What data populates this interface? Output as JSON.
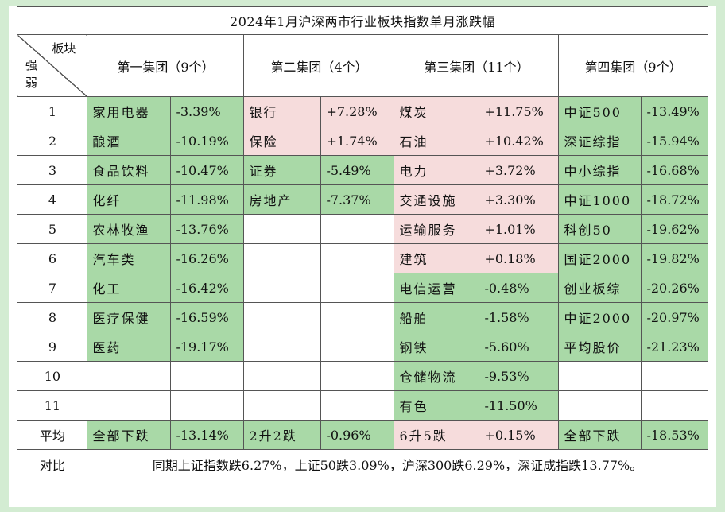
{
  "title": "2024年1月沪深两市行业板块指数单月涨跌幅",
  "corner": {
    "top": "板块",
    "bottom_1": "强",
    "bottom_2": "弱"
  },
  "groups": [
    {
      "header": "第一集团（9个）"
    },
    {
      "header": "第二集团（4个）"
    },
    {
      "header": "第三集团（11个）"
    },
    {
      "header": "第四集团（9个）"
    }
  ],
  "rows": [
    {
      "rank": "1",
      "cells": [
        {
          "name": "家用电器",
          "value": "-3.39%",
          "trend": "down"
        },
        {
          "name": "银行",
          "value": "+7.28%",
          "trend": "up"
        },
        {
          "name": "煤炭",
          "value": "+11.75%",
          "trend": "up"
        },
        {
          "name": "中证500",
          "value": "-13.49%",
          "trend": "down"
        }
      ]
    },
    {
      "rank": "2",
      "cells": [
        {
          "name": "酿酒",
          "value": "-10.19%",
          "trend": "down"
        },
        {
          "name": "保险",
          "value": "+1.74%",
          "trend": "up"
        },
        {
          "name": "石油",
          "value": "+10.42%",
          "trend": "up"
        },
        {
          "name": "深证综指",
          "value": "-15.94%",
          "trend": "down"
        }
      ]
    },
    {
      "rank": "3",
      "cells": [
        {
          "name": "食品饮料",
          "value": "-10.47%",
          "trend": "down"
        },
        {
          "name": "证券",
          "value": "-5.49%",
          "trend": "down"
        },
        {
          "name": "电力",
          "value": "+3.72%",
          "trend": "up"
        },
        {
          "name": "中小综指",
          "value": "-16.68%",
          "trend": "down"
        }
      ]
    },
    {
      "rank": "4",
      "cells": [
        {
          "name": "化纤",
          "value": "-11.98%",
          "trend": "down"
        },
        {
          "name": "房地产",
          "value": "-7.37%",
          "trend": "down"
        },
        {
          "name": "交通设施",
          "value": "+3.30%",
          "trend": "up"
        },
        {
          "name": "中证1000",
          "value": "-18.72%",
          "trend": "down"
        }
      ]
    },
    {
      "rank": "5",
      "cells": [
        {
          "name": "农林牧渔",
          "value": "-13.76%",
          "trend": "down"
        },
        {
          "name": "",
          "value": "",
          "trend": "blank"
        },
        {
          "name": "运输服务",
          "value": "+1.01%",
          "trend": "up"
        },
        {
          "name": "科创50",
          "value": "-19.62%",
          "trend": "down"
        }
      ]
    },
    {
      "rank": "6",
      "cells": [
        {
          "name": "汽车类",
          "value": "-16.26%",
          "trend": "down"
        },
        {
          "name": "",
          "value": "",
          "trend": "blank"
        },
        {
          "name": "建筑",
          "value": "+0.18%",
          "trend": "up"
        },
        {
          "name": "国证2000",
          "value": "-19.82%",
          "trend": "down"
        }
      ]
    },
    {
      "rank": "7",
      "cells": [
        {
          "name": "化工",
          "value": "-16.42%",
          "trend": "down"
        },
        {
          "name": "",
          "value": "",
          "trend": "blank"
        },
        {
          "name": "电信运营",
          "value": "-0.48%",
          "trend": "down"
        },
        {
          "name": "创业板综",
          "value": "-20.26%",
          "trend": "down"
        }
      ]
    },
    {
      "rank": "8",
      "cells": [
        {
          "name": "医疗保健",
          "value": "-16.59%",
          "trend": "down"
        },
        {
          "name": "",
          "value": "",
          "trend": "blank"
        },
        {
          "name": "船舶",
          "value": "-1.58%",
          "trend": "down"
        },
        {
          "name": "中证2000",
          "value": "-20.97%",
          "trend": "down"
        }
      ]
    },
    {
      "rank": "9",
      "cells": [
        {
          "name": "医药",
          "value": "-19.17%",
          "trend": "down"
        },
        {
          "name": "",
          "value": "",
          "trend": "blank"
        },
        {
          "name": "钢铁",
          "value": "-5.60%",
          "trend": "down"
        },
        {
          "name": "平均股价",
          "value": "-21.23%",
          "trend": "down"
        }
      ]
    },
    {
      "rank": "10",
      "cells": [
        {
          "name": "",
          "value": "",
          "trend": "blank"
        },
        {
          "name": "",
          "value": "",
          "trend": "blank"
        },
        {
          "name": "仓储物流",
          "value": "-9.53%",
          "trend": "down"
        },
        {
          "name": "",
          "value": "",
          "trend": "blank"
        }
      ]
    },
    {
      "rank": "11",
      "cells": [
        {
          "name": "",
          "value": "",
          "trend": "blank"
        },
        {
          "name": "",
          "value": "",
          "trend": "blank"
        },
        {
          "name": "有色",
          "value": "-11.50%",
          "trend": "down"
        },
        {
          "name": "",
          "value": "",
          "trend": "blank"
        }
      ]
    }
  ],
  "average": {
    "label": "平均",
    "cells": [
      {
        "name": "全部下跌",
        "value": "-13.14%",
        "trend": "down"
      },
      {
        "name": "2升2跌",
        "value": "-0.96%",
        "trend": "down"
      },
      {
        "name": "6升5跌",
        "value": "+0.15%",
        "trend": "up"
      },
      {
        "name": "全部下跌",
        "value": "-18.53%",
        "trend": "down"
      }
    ]
  },
  "comparison": {
    "label": "对比",
    "text": "同期上证指数跌6.27%，上证50跌3.09%，沪深300跌6.29%，深证成指跌13.77%。"
  },
  "colors": {
    "up": "#f6dcdc",
    "down": "#a9d9a7",
    "page_bg": "#d3ecd2"
  }
}
